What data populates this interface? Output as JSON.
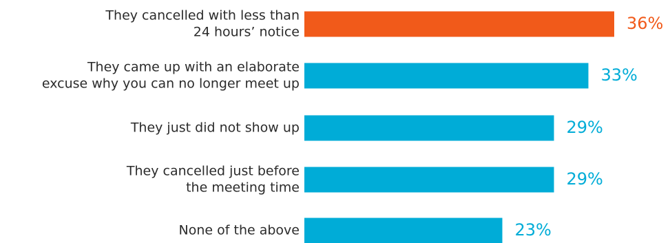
{
  "chart_data": {
    "type": "bar",
    "orientation": "horizontal",
    "categories": [
      [
        "They cancelled with less than",
        "24 hours’ notice"
      ],
      [
        "They came up with an elaborate",
        "excuse why you can no longer meet up"
      ],
      [
        "They just did not show up"
      ],
      [
        "They cancelled just before",
        "the meeting time"
      ],
      [
        "None of the above"
      ]
    ],
    "values": [
      36,
      33,
      29,
      29,
      23
    ],
    "value_labels": [
      "36%",
      "33%",
      "29%",
      "29%",
      "23%"
    ],
    "highlight_index": 0,
    "xlim": [
      0,
      36
    ],
    "grid": false,
    "legend": "none"
  },
  "colors": {
    "highlight": "#f15a1a",
    "bar": "#00acd7",
    "label_text": "#2b2b2b"
  }
}
